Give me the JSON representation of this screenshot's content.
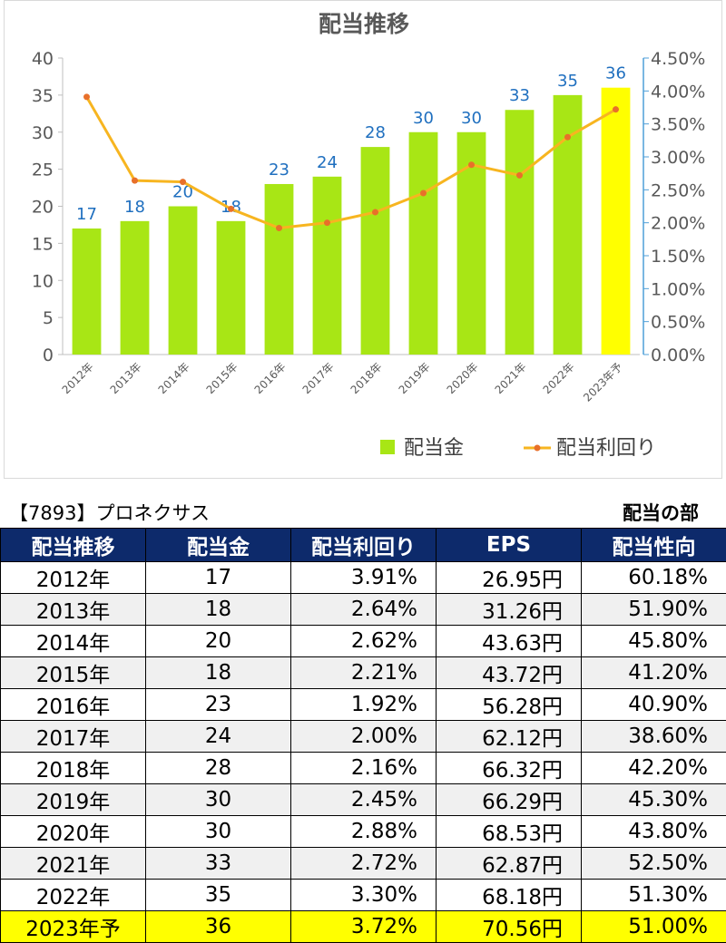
{
  "chart_data": {
    "type": "bar+line",
    "title": "配当推移",
    "categories": [
      "2012年",
      "2013年",
      "2014年",
      "2015年",
      "2016年",
      "2017年",
      "2018年",
      "2019年",
      "2020年",
      "2021年",
      "2022年",
      "2023年予"
    ],
    "series": [
      {
        "name": "配当金",
        "type": "bar",
        "axis": "left",
        "values": [
          17,
          18,
          20,
          18,
          23,
          24,
          28,
          30,
          30,
          33,
          35,
          36
        ],
        "color": "#a8e615",
        "highlight_color": "#ffff00",
        "highlight_index": 11
      },
      {
        "name": "配当利回り",
        "type": "line",
        "axis": "right",
        "values": [
          3.91,
          2.64,
          2.62,
          2.21,
          1.92,
          2.0,
          2.16,
          2.45,
          2.88,
          2.72,
          3.3,
          3.72
        ],
        "color": "#f7b520",
        "marker_color": "#e8702a"
      }
    ],
    "y_left": {
      "min": 0,
      "max": 40,
      "ticks": [
        0,
        5,
        10,
        15,
        20,
        25,
        30,
        35,
        40
      ]
    },
    "y_right": {
      "min": 0,
      "max": 4.5,
      "ticks": [
        "0.00%",
        "0.50%",
        "1.00%",
        "1.50%",
        "2.00%",
        "2.50%",
        "3.00%",
        "3.50%",
        "4.00%",
        "4.50%"
      ]
    },
    "data_label_color": "#1f6fbf",
    "legend_position": "bottom-right",
    "grid": false
  },
  "heading": {
    "left": "【7893】プロネクサス",
    "right": "配当の部"
  },
  "table": {
    "columns": [
      "配当推移",
      "配当金",
      "配当利回り",
      "EPS",
      "配当性向"
    ],
    "rows": [
      [
        "2012年",
        "17",
        "3.91%",
        "26.95円",
        "60.18%"
      ],
      [
        "2013年",
        "18",
        "2.64%",
        "31.26円",
        "51.90%"
      ],
      [
        "2014年",
        "20",
        "2.62%",
        "43.63円",
        "45.80%"
      ],
      [
        "2015年",
        "18",
        "2.21%",
        "43.72円",
        "41.20%"
      ],
      [
        "2016年",
        "23",
        "1.92%",
        "56.28円",
        "40.90%"
      ],
      [
        "2017年",
        "24",
        "2.00%",
        "62.12円",
        "38.60%"
      ],
      [
        "2018年",
        "28",
        "2.16%",
        "66.32円",
        "42.20%"
      ],
      [
        "2019年",
        "30",
        "2.45%",
        "66.29円",
        "45.30%"
      ],
      [
        "2020年",
        "30",
        "2.88%",
        "68.53円",
        "43.80%"
      ],
      [
        "2021年",
        "33",
        "2.72%",
        "62.87円",
        "52.50%"
      ],
      [
        "2022年",
        "35",
        "3.30%",
        "68.18円",
        "51.30%"
      ],
      [
        "2023年予",
        "36",
        "3.72%",
        "70.56円",
        "51.00%"
      ]
    ]
  }
}
